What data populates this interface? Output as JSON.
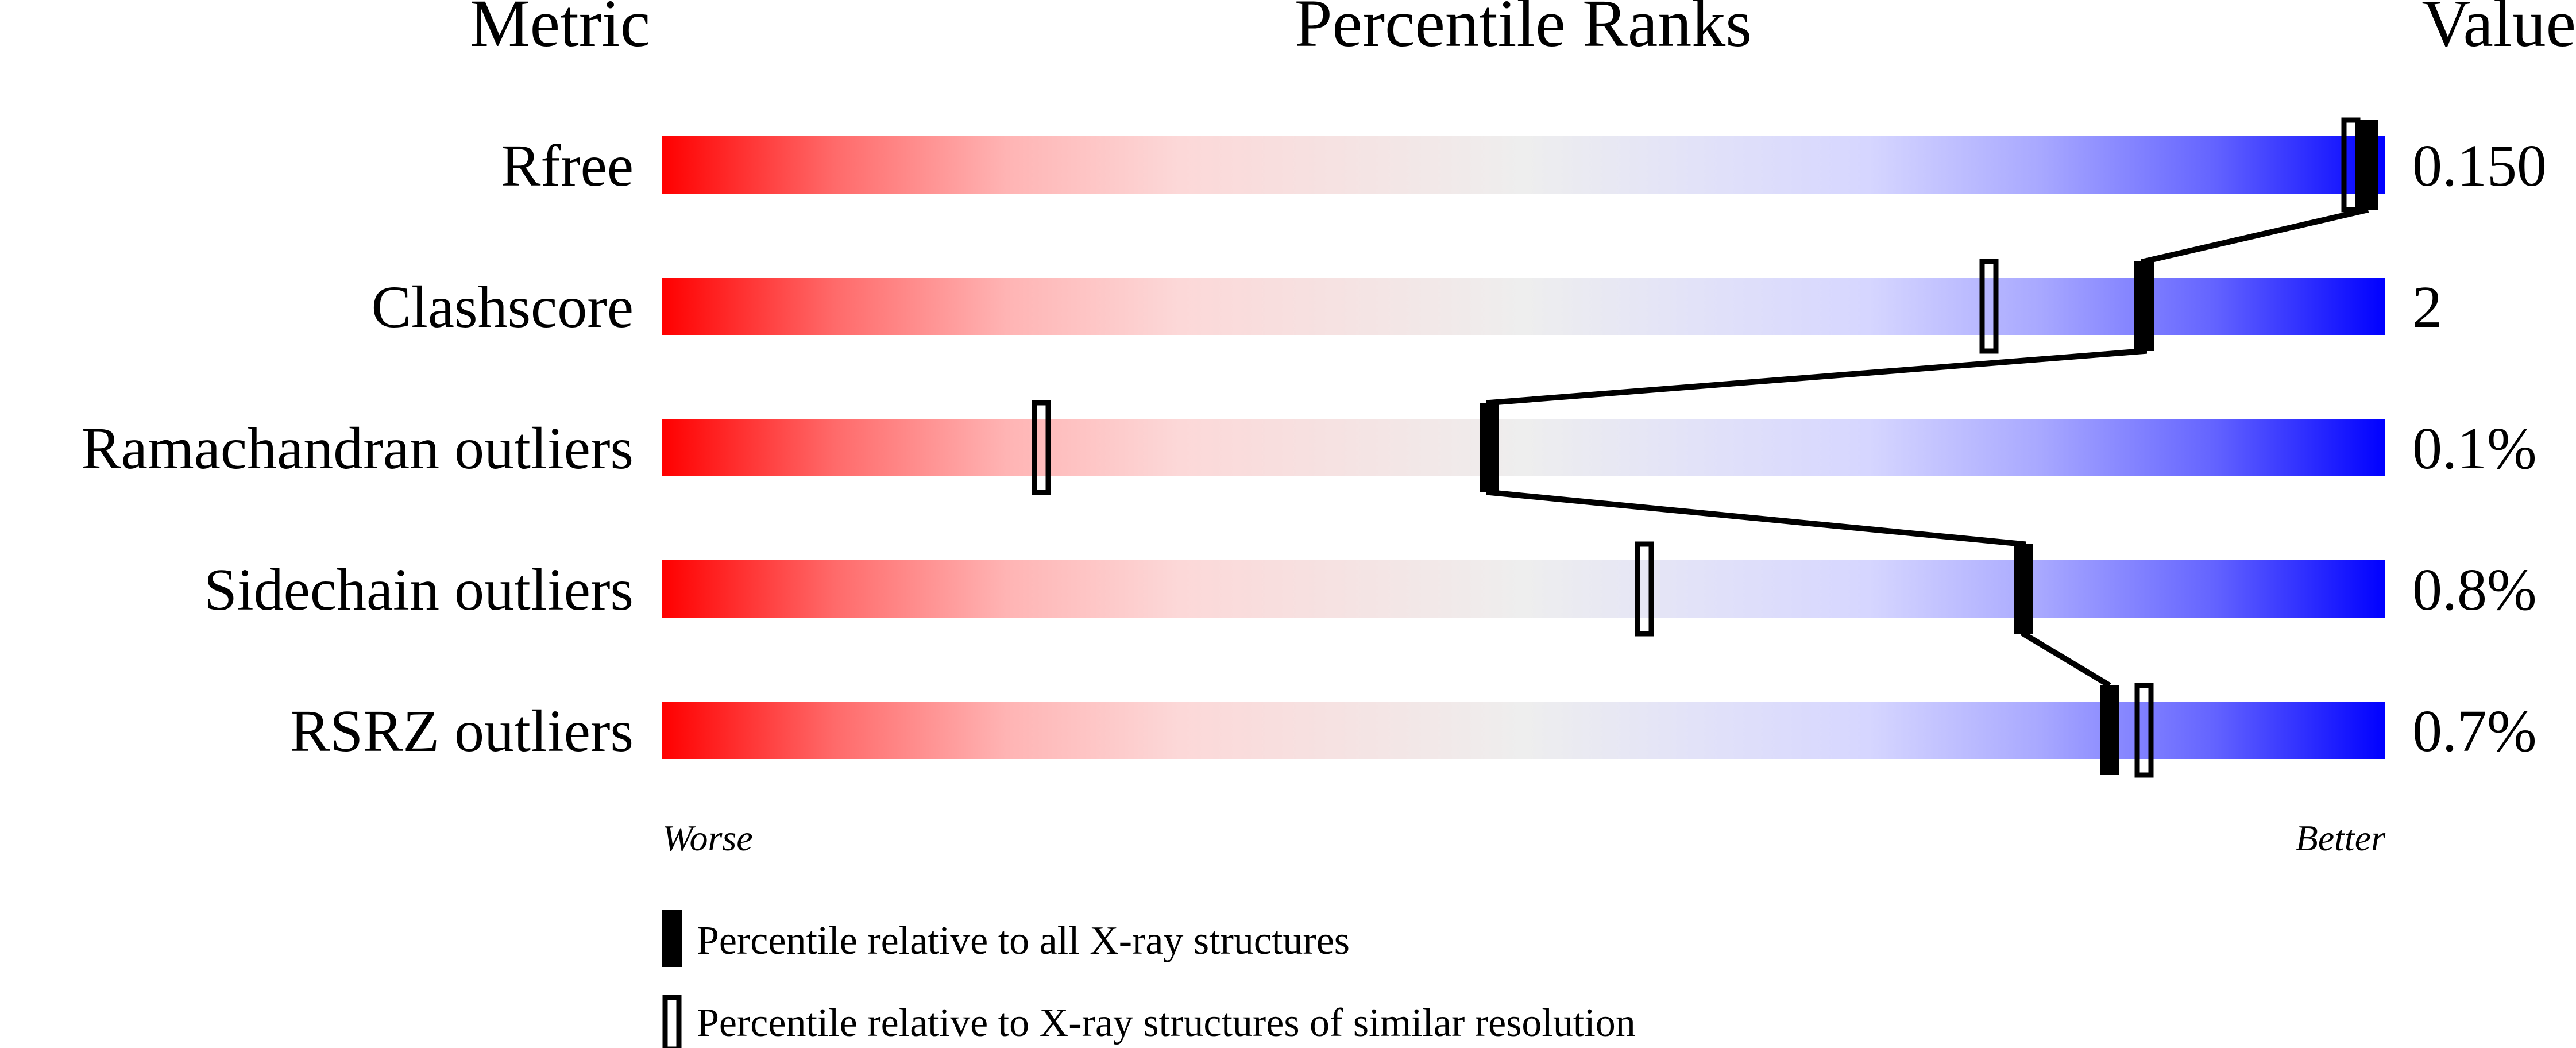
{
  "chart_data": {
    "type": "bar",
    "headers": {
      "metric": "Metric",
      "ranks": "Percentile Ranks",
      "value": "Value"
    },
    "xlim": [
      0,
      100
    ],
    "axis": {
      "left": "Worse",
      "right": "Better"
    },
    "gradient_colors": [
      "#ff0000",
      "#eeeeee",
      "#0000ff"
    ],
    "metrics": [
      {
        "name": "Rfree",
        "value": "0.150",
        "percentile_all": 99,
        "percentile_similar": 98
      },
      {
        "name": "Clashscore",
        "value": "2",
        "percentile_all": 86,
        "percentile_similar": 77
      },
      {
        "name": "Ramachandran outliers",
        "value": "0.1%",
        "percentile_all": 48,
        "percentile_similar": 22
      },
      {
        "name": "Sidechain outliers",
        "value": "0.8%",
        "percentile_all": 79,
        "percentile_similar": 57
      },
      {
        "name": "RSRZ outliers",
        "value": "0.7%",
        "percentile_all": 84,
        "percentile_similar": 86
      }
    ],
    "legend": [
      {
        "marker": "filled",
        "label": "Percentile relative to all X-ray structures"
      },
      {
        "marker": "open",
        "label": "Percentile relative to X-ray structures of similar resolution"
      }
    ]
  }
}
